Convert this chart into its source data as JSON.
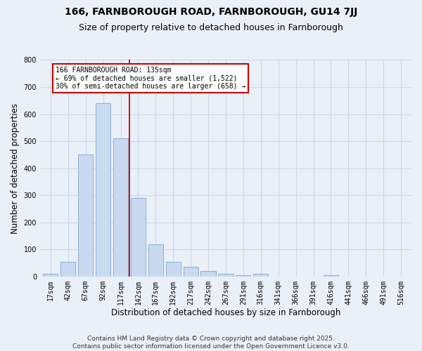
{
  "title": "166, FARNBOROUGH ROAD, FARNBOROUGH, GU14 7JJ",
  "subtitle": "Size of property relative to detached houses in Farnborough",
  "xlabel": "Distribution of detached houses by size in Farnborough",
  "ylabel": "Number of detached properties",
  "categories": [
    "17sqm",
    "42sqm",
    "67sqm",
    "92sqm",
    "117sqm",
    "142sqm",
    "167sqm",
    "192sqm",
    "217sqm",
    "242sqm",
    "267sqm",
    "291sqm",
    "316sqm",
    "341sqm",
    "366sqm",
    "391sqm",
    "416sqm",
    "441sqm",
    "466sqm",
    "491sqm",
    "516sqm"
  ],
  "values": [
    10,
    55,
    450,
    640,
    510,
    290,
    120,
    55,
    35,
    20,
    10,
    5,
    10,
    0,
    0,
    0,
    5,
    0,
    0,
    0,
    0
  ],
  "bar_color": "#c9d9f0",
  "bar_edge_color": "#7fa8d0",
  "grid_color": "#c8d8e8",
  "bg_color": "#eaf0f8",
  "vline_color": "#cc0000",
  "annotation_text": "166 FARNBOROUGH ROAD: 135sqm\n← 69% of detached houses are smaller (1,522)\n30% of semi-detached houses are larger (658) →",
  "annotation_box_color": "#ffffff",
  "annotation_box_edge": "#cc0000",
  "ylim": [
    0,
    800
  ],
  "yticks": [
    0,
    100,
    200,
    300,
    400,
    500,
    600,
    700,
    800
  ],
  "footer": "Contains HM Land Registry data © Crown copyright and database right 2025.\nContains public sector information licensed under the Open Government Licence v3.0.",
  "title_fontsize": 10,
  "subtitle_fontsize": 9,
  "axis_label_fontsize": 8.5,
  "tick_fontsize": 7,
  "footer_fontsize": 6.5,
  "annot_fontsize": 7
}
